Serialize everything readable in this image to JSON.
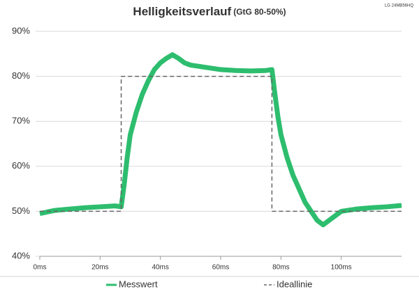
{
  "chart_data": {
    "type": "line",
    "title": "Helligkeitsverlauf",
    "subtitle": "(GtG 80-50%)",
    "annotation": "LG 24MB56HQ",
    "xlim": [
      0,
      120
    ],
    "xticks": [
      {
        "value": 0,
        "label": "0ms"
      },
      {
        "value": 20,
        "label": "20ms"
      },
      {
        "value": 40,
        "label": "40ms"
      },
      {
        "value": 60,
        "label": "60ms"
      },
      {
        "value": 80,
        "label": "80ms"
      },
      {
        "value": 100,
        "label": "100ms"
      }
    ],
    "ylim": [
      40,
      90
    ],
    "yticks": [
      {
        "value": 40,
        "label": "40%"
      },
      {
        "value": 50,
        "label": "50%"
      },
      {
        "value": 60,
        "label": "60%"
      },
      {
        "value": 70,
        "label": "70%"
      },
      {
        "value": 80,
        "label": "80%"
      },
      {
        "value": 90,
        "label": "90%"
      }
    ],
    "grid": true,
    "legend": "bottom",
    "series": [
      {
        "name": "Messwert",
        "color": "#2dbd6e",
        "style": "solid",
        "x": [
          0,
          5,
          10,
          15,
          20,
          25,
          27,
          28,
          29,
          30,
          32,
          34,
          36,
          38,
          40,
          42,
          44,
          46,
          48,
          50,
          55,
          60,
          65,
          70,
          75,
          77,
          78,
          79,
          80,
          82,
          84,
          86,
          88,
          90,
          92,
          94,
          96,
          98,
          100,
          105,
          110,
          115,
          120
        ],
        "values": [
          49.5,
          50.2,
          50.5,
          50.8,
          51,
          51.2,
          51,
          56,
          62,
          67,
          72,
          76,
          79,
          81.5,
          83,
          84,
          84.8,
          84,
          83,
          82.5,
          82,
          81.5,
          81.3,
          81.2,
          81.3,
          81.5,
          76,
          71,
          67,
          62,
          58,
          55,
          52,
          50,
          48,
          47,
          48,
          49,
          50,
          50.5,
          50.8,
          51,
          51.3
        ]
      },
      {
        "name": "Ideallinie",
        "color": "#666666",
        "style": "dashed",
        "x": [
          0,
          27,
          27,
          77,
          77,
          120
        ],
        "values": [
          50,
          50,
          80,
          80,
          50,
          50
        ]
      }
    ]
  }
}
